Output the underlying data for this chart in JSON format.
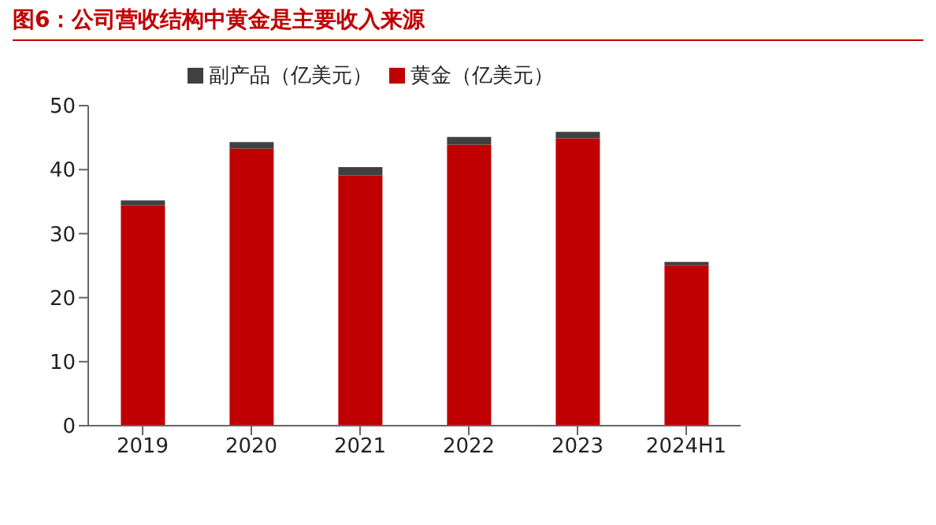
{
  "chart_data": {
    "type": "bar",
    "title": "图6：公司营收结构中黄金是主要收入来源",
    "categories": [
      "2019",
      "2020",
      "2021",
      "2022",
      "2023",
      "2024H1"
    ],
    "stacked": true,
    "legend": "top",
    "ylim": [
      0,
      50
    ],
    "yticks": [
      0,
      10,
      20,
      30,
      40,
      50
    ],
    "grid": false,
    "series": [
      {
        "name": "黄金（亿美元）",
        "color": "#c00000",
        "values": [
          34.4,
          43.3,
          39.1,
          43.9,
          44.9,
          25.1
        ]
      },
      {
        "name": "副产品（亿美元）",
        "color": "#404040",
        "values": [
          0.8,
          1.0,
          1.3,
          1.2,
          1.0,
          0.5
        ]
      }
    ]
  }
}
